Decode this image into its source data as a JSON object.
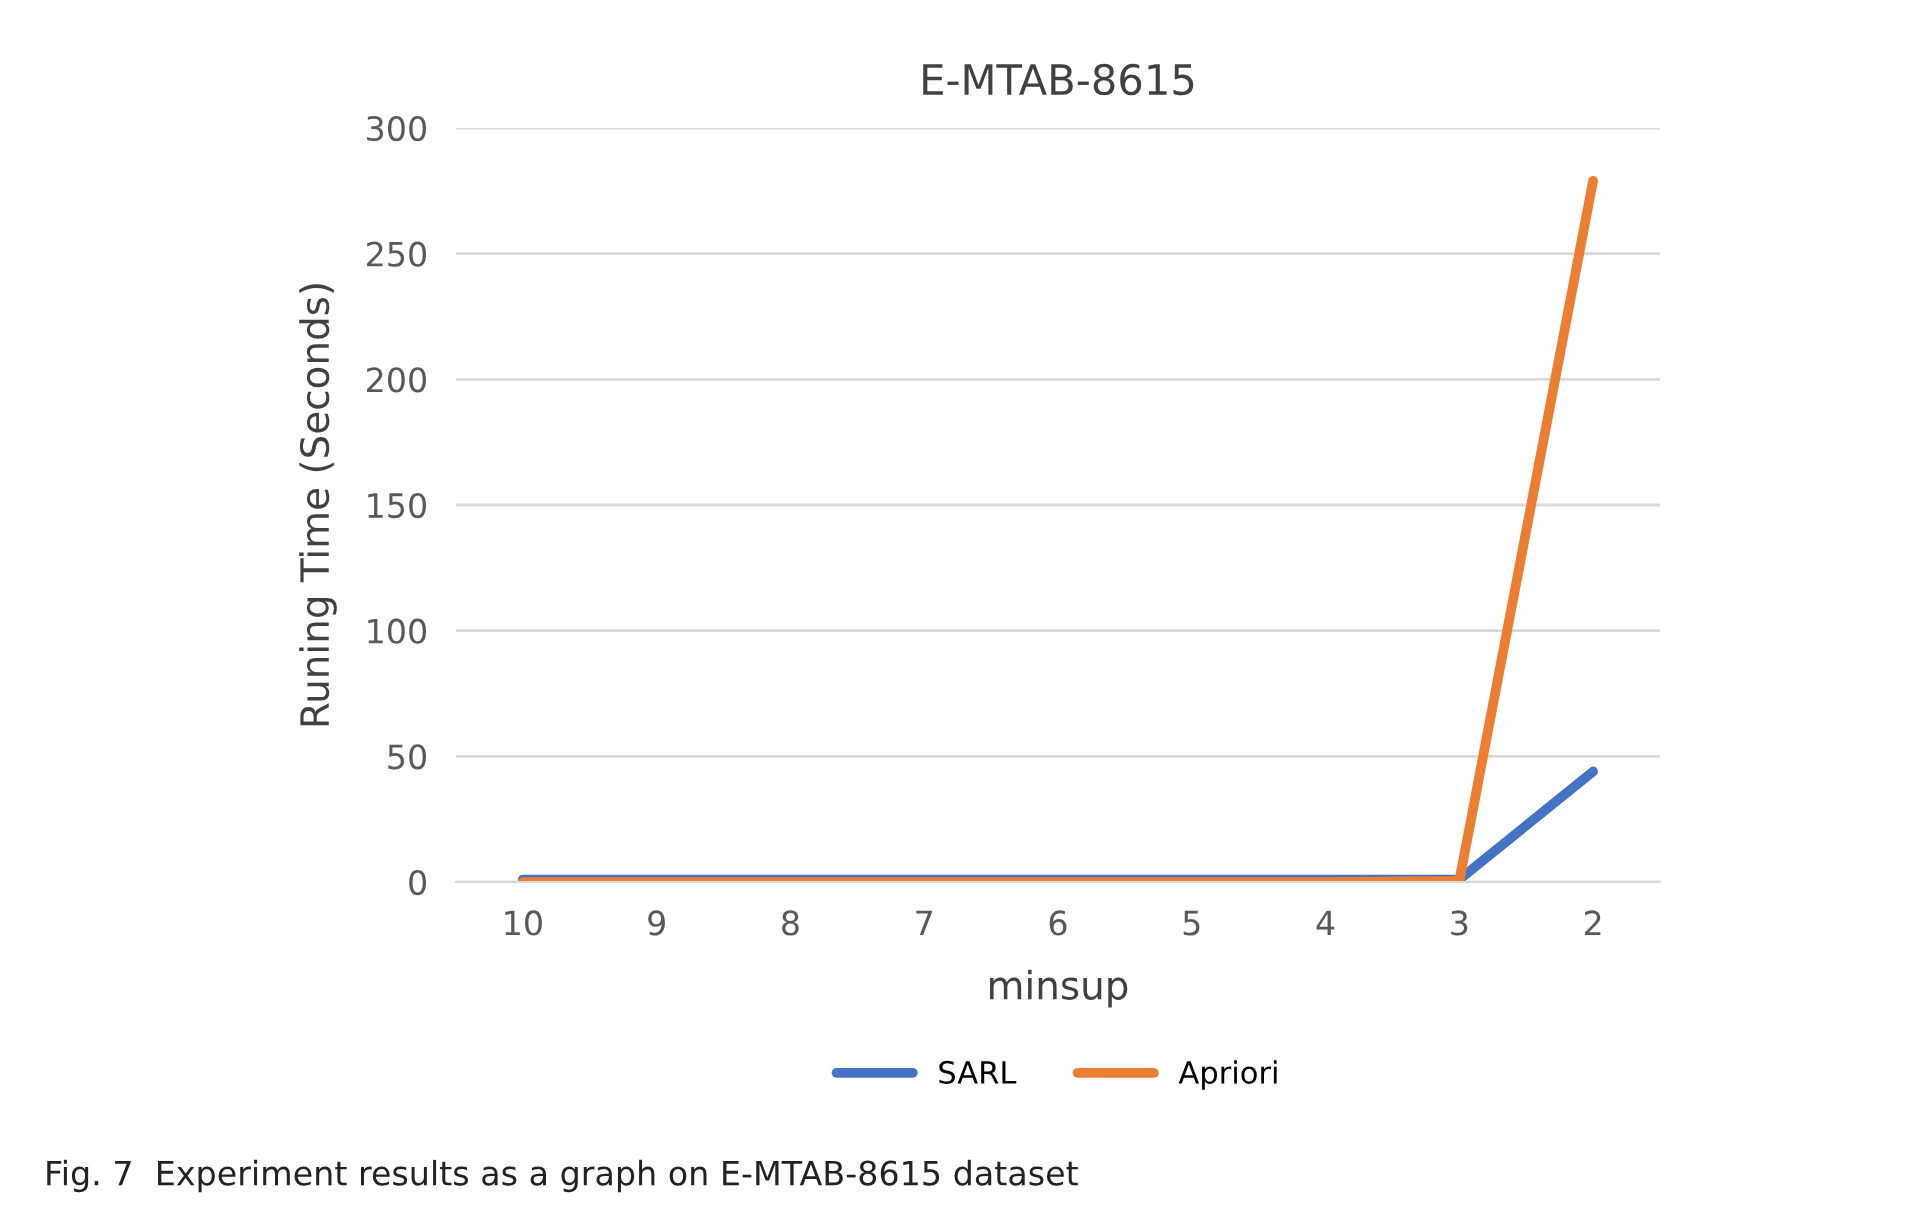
{
  "chart_data": {
    "type": "line",
    "title": "E-MTAB-8615",
    "xlabel": "minsup",
    "ylabel": "Runing Time (Seconds)",
    "categories": [
      "10",
      "9",
      "8",
      "7",
      "6",
      "5",
      "4",
      "3",
      "2"
    ],
    "series": [
      {
        "name": "SARL",
        "color": "#4472c4",
        "values": [
          1,
          1,
          1,
          1,
          1,
          1,
          1,
          1,
          44
        ]
      },
      {
        "name": "Apriori",
        "color": "#ed7d31",
        "values": [
          0,
          0,
          0,
          0,
          0,
          0,
          0,
          0.5,
          279
        ]
      }
    ],
    "ylim": [
      0,
      300
    ],
    "yticks": [
      0,
      50,
      100,
      150,
      200,
      250,
      300
    ],
    "grid": "y",
    "legend": "bottom",
    "marker": "none",
    "line_style": "solid",
    "annotations": [
      "Fig. 7  Experiment results as a graph on E-MTAB-8615 dataset"
    ]
  }
}
